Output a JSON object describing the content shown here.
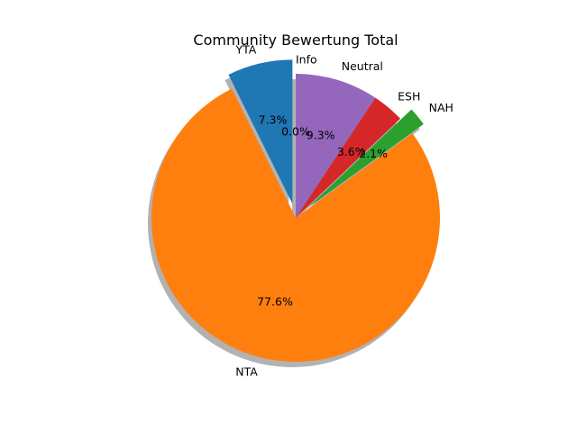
{
  "chart_data": {
    "type": "pie",
    "title": "Community Bewertung Total",
    "slices": [
      {
        "label": "YTA",
        "percent": 7.3,
        "pct_text": "7.3%",
        "color": "#1f77b4",
        "explode": 0.1
      },
      {
        "label": "NTA",
        "percent": 77.6,
        "pct_text": "77.6%",
        "color": "#ff7f0e",
        "explode": 0.0
      },
      {
        "label": "NAH",
        "percent": 2.1,
        "pct_text": "2.1%",
        "color": "#2ca02c",
        "explode": 0.1
      },
      {
        "label": "ESH",
        "percent": 3.6,
        "pct_text": "3.6%",
        "color": "#d62728",
        "explode": 0.0
      },
      {
        "label": "Neutral",
        "percent": 9.3,
        "pct_text": "9.3%",
        "color": "#9467bd",
        "explode": 0.0
      },
      {
        "label": "Info",
        "percent": 0.0,
        "pct_text": "0.0%",
        "color": "#8c564b",
        "explode": 0.0
      }
    ],
    "start_angle_deg": 90,
    "direction": "counterclockwise",
    "shadow": true
  }
}
